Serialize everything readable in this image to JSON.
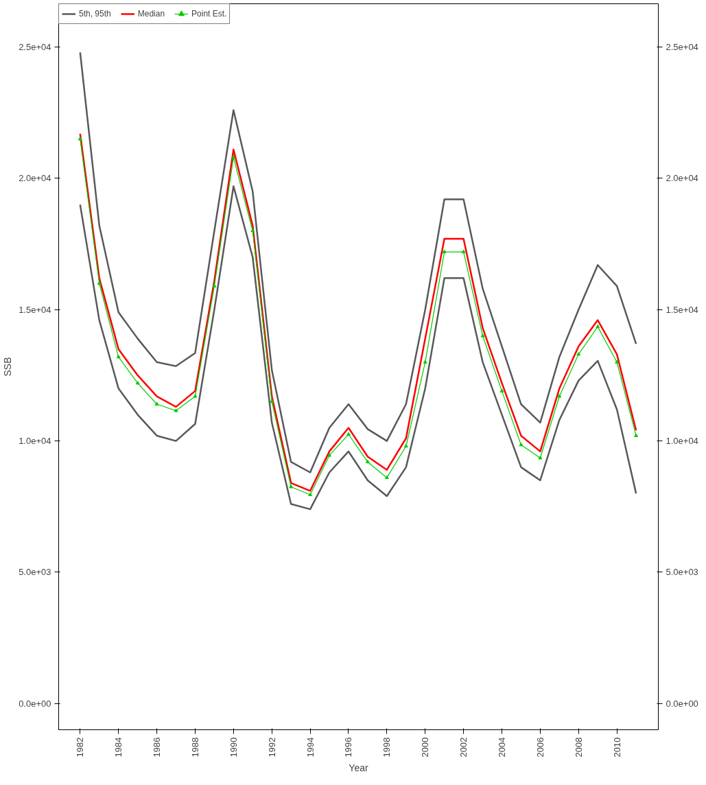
{
  "chart_data": {
    "type": "line",
    "xlabel": "Year",
    "ylabel": "SSB",
    "x": [
      1982,
      1983,
      1984,
      1985,
      1986,
      1987,
      1988,
      1989,
      1990,
      1991,
      1992,
      1993,
      1994,
      1995,
      1996,
      1997,
      1998,
      1999,
      2000,
      2001,
      2002,
      2003,
      2004,
      2005,
      2006,
      2007,
      2008,
      2009,
      2010,
      2011
    ],
    "series": [
      {
        "name": "5th, 95th",
        "color": "#595959",
        "values": [
          24800,
          18200,
          14900,
          13900,
          13000,
          12850,
          13350,
          18000,
          22600,
          19500,
          12700,
          9200,
          8800,
          10500,
          11400,
          10450,
          10000,
          11400,
          15000,
          19200,
          19200,
          15800,
          13600,
          11400,
          10700,
          13200,
          15000,
          16700,
          15900,
          13700
        ]
      },
      {
        "color": "#595959",
        "values": [
          19000,
          14600,
          12000,
          11000,
          10200,
          10000,
          10650,
          15000,
          19700,
          17000,
          10700,
          7600,
          7400,
          8800,
          9600,
          8500,
          7900,
          9000,
          12000,
          16200,
          16200,
          13000,
          11000,
          9000,
          8500,
          10800,
          12300,
          13050,
          11200,
          8000
        ]
      },
      {
        "name": "Median",
        "color": "#ff0000",
        "values": [
          21700,
          16200,
          13500,
          12500,
          11700,
          11300,
          11900,
          16100,
          21100,
          18200,
          11700,
          8400,
          8100,
          9600,
          10500,
          9400,
          8900,
          10100,
          13900,
          17700,
          17700,
          14300,
          12200,
          10200,
          9600,
          12000,
          13600,
          14600,
          13300,
          10400
        ]
      },
      {
        "name": "Point Est.",
        "color": "#00cc00",
        "marker": "triangle",
        "values": [
          21500,
          16000,
          13200,
          12200,
          11400,
          11150,
          11700,
          15900,
          20800,
          18000,
          11500,
          8250,
          7950,
          9450,
          10250,
          9200,
          8600,
          9800,
          13000,
          17200,
          17200,
          14000,
          11900,
          9850,
          9350,
          11700,
          13300,
          14350,
          13000,
          10200
        ]
      }
    ],
    "xlim": [
      1980.88,
      2012.16
    ],
    "xticks": [
      1982,
      1984,
      1986,
      1988,
      1990,
      1992,
      1994,
      1996,
      1998,
      2000,
      2002,
      2004,
      2006,
      2008,
      2010
    ],
    "ylim": [
      -1000,
      26650
    ],
    "yticks": [
      {
        "value": 0,
        "label": "0.0e+00"
      },
      {
        "value": 5000,
        "label": "5.0e+03"
      },
      {
        "value": 10000,
        "label": "1.0e+04"
      },
      {
        "value": 15000,
        "label": "1.5e+04"
      },
      {
        "value": 20000,
        "label": "2.0e+04"
      },
      {
        "value": 25000,
        "label": "2.5e+04"
      }
    ],
    "y2lim": [
      -1000,
      26650
    ],
    "y2ticks": [
      {
        "value": 0,
        "label": "0.0e+00"
      },
      {
        "value": 5000,
        "label": "5.0e+03"
      },
      {
        "value": 10000,
        "label": "1.0e+04"
      },
      {
        "value": 15000,
        "label": "1.5e+04"
      },
      {
        "value": 20000,
        "label": "2.0e+04"
      },
      {
        "value": 25000,
        "label": "2.5e+04"
      }
    ],
    "grid": false,
    "legend": "top left"
  }
}
